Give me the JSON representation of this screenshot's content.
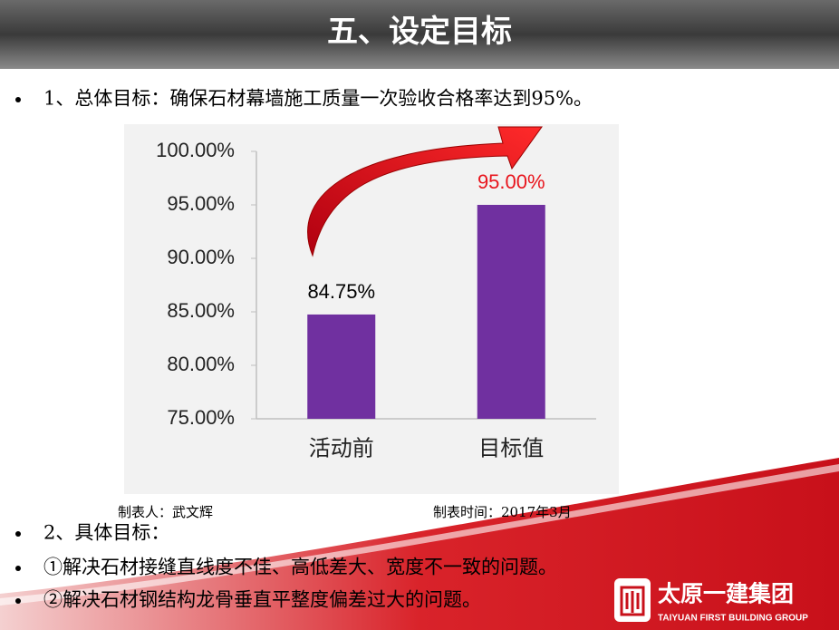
{
  "header": {
    "title": "五、设定目标"
  },
  "bullets": [
    "1、总体目标：确保石材幕墙施工质量一次验收合格率达到95%。",
    "2、具体目标：",
    "①解决石材接缝直线度不佳、高低差大、宽度不一致的问题。",
    "②解决石材钢结构龙骨垂直平整度偏差过大的问题。"
  ],
  "chart_notes": {
    "maker": "制表人：武文辉",
    "date": "制表时间：2017年3月"
  },
  "logo": {
    "name": "太原一建集团",
    "english": "TAIYUAN FIRST BUILDING GROUP"
  },
  "chart_data": {
    "type": "bar",
    "categories": [
      "活动前",
      "目标值"
    ],
    "values": [
      84.75,
      95.0
    ],
    "value_labels": [
      "84.75%",
      "95.00%"
    ],
    "value_label_colors": [
      "#000000",
      "#e8141c"
    ],
    "color": "#7030a0",
    "ylim": [
      75,
      100
    ],
    "yticks": [
      {
        "value": 75,
        "label": "75.00%"
      },
      {
        "value": 80,
        "label": "80.00%"
      },
      {
        "value": 85,
        "label": "85.00%"
      },
      {
        "value": 90,
        "label": "90.00%"
      },
      {
        "value": 95,
        "label": "95.00%"
      },
      {
        "value": 100,
        "label": "100.00%"
      }
    ],
    "grid": false
  }
}
